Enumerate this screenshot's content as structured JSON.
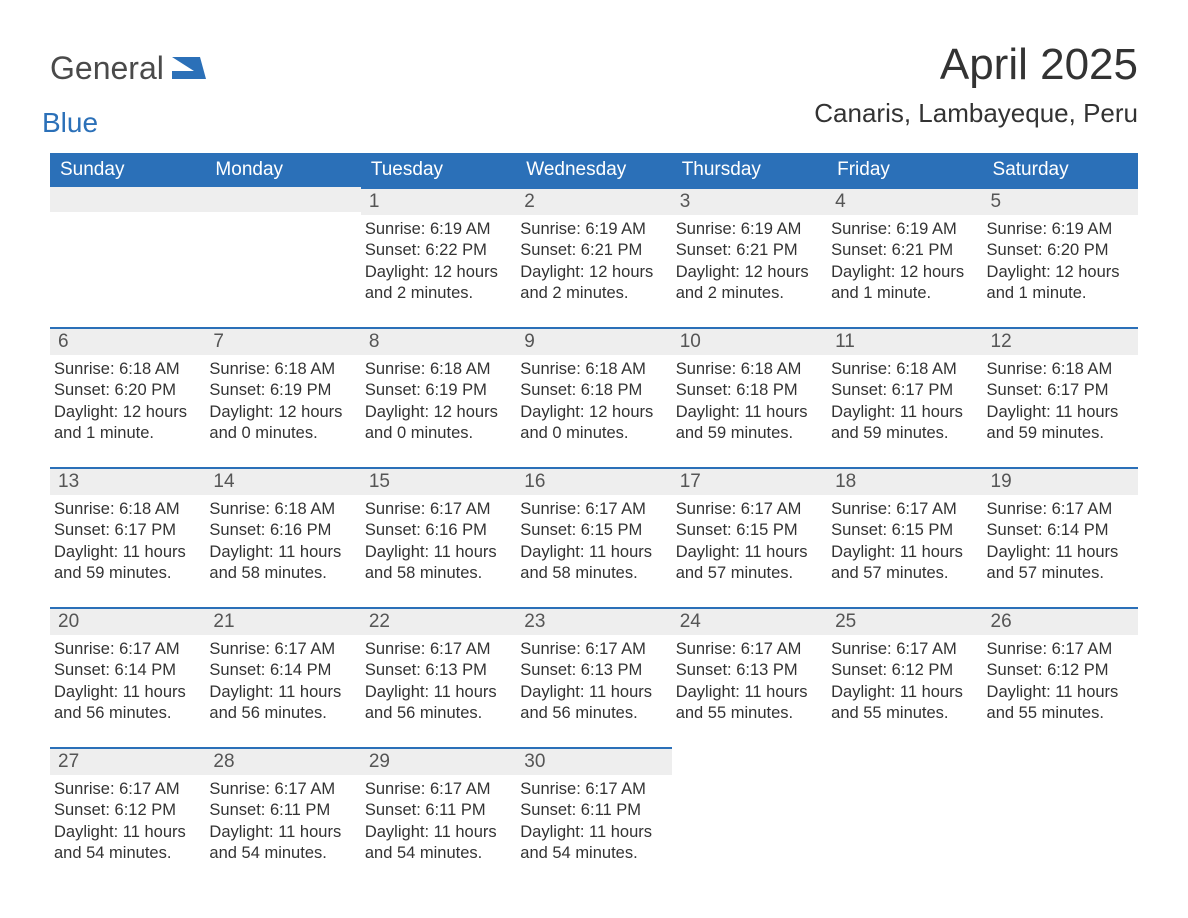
{
  "logo": {
    "word1": "General",
    "word2": "Blue",
    "accent_color": "#2b70b8",
    "text_color": "#4a4a4a"
  },
  "title": "April 2025",
  "location": "Canaris, Lambayeque, Peru",
  "header_bg": "#2b70b8",
  "header_fg": "#ffffff",
  "daynum_bg": "#eeeeee",
  "daynum_border": "#2b70b8",
  "page_bg": "#ffffff",
  "days_of_week": [
    "Sunday",
    "Monday",
    "Tuesday",
    "Wednesday",
    "Thursday",
    "Friday",
    "Saturday"
  ],
  "weeks": [
    [
      null,
      null,
      {
        "n": "1",
        "sr": "6:19 AM",
        "ss": "6:22 PM",
        "dl": "12 hours and 2 minutes."
      },
      {
        "n": "2",
        "sr": "6:19 AM",
        "ss": "6:21 PM",
        "dl": "12 hours and 2 minutes."
      },
      {
        "n": "3",
        "sr": "6:19 AM",
        "ss": "6:21 PM",
        "dl": "12 hours and 2 minutes."
      },
      {
        "n": "4",
        "sr": "6:19 AM",
        "ss": "6:21 PM",
        "dl": "12 hours and 1 minute."
      },
      {
        "n": "5",
        "sr": "6:19 AM",
        "ss": "6:20 PM",
        "dl": "12 hours and 1 minute."
      }
    ],
    [
      {
        "n": "6",
        "sr": "6:18 AM",
        "ss": "6:20 PM",
        "dl": "12 hours and 1 minute."
      },
      {
        "n": "7",
        "sr": "6:18 AM",
        "ss": "6:19 PM",
        "dl": "12 hours and 0 minutes."
      },
      {
        "n": "8",
        "sr": "6:18 AM",
        "ss": "6:19 PM",
        "dl": "12 hours and 0 minutes."
      },
      {
        "n": "9",
        "sr": "6:18 AM",
        "ss": "6:18 PM",
        "dl": "12 hours and 0 minutes."
      },
      {
        "n": "10",
        "sr": "6:18 AM",
        "ss": "6:18 PM",
        "dl": "11 hours and 59 minutes."
      },
      {
        "n": "11",
        "sr": "6:18 AM",
        "ss": "6:17 PM",
        "dl": "11 hours and 59 minutes."
      },
      {
        "n": "12",
        "sr": "6:18 AM",
        "ss": "6:17 PM",
        "dl": "11 hours and 59 minutes."
      }
    ],
    [
      {
        "n": "13",
        "sr": "6:18 AM",
        "ss": "6:17 PM",
        "dl": "11 hours and 59 minutes."
      },
      {
        "n": "14",
        "sr": "6:18 AM",
        "ss": "6:16 PM",
        "dl": "11 hours and 58 minutes."
      },
      {
        "n": "15",
        "sr": "6:17 AM",
        "ss": "6:16 PM",
        "dl": "11 hours and 58 minutes."
      },
      {
        "n": "16",
        "sr": "6:17 AM",
        "ss": "6:15 PM",
        "dl": "11 hours and 58 minutes."
      },
      {
        "n": "17",
        "sr": "6:17 AM",
        "ss": "6:15 PM",
        "dl": "11 hours and 57 minutes."
      },
      {
        "n": "18",
        "sr": "6:17 AM",
        "ss": "6:15 PM",
        "dl": "11 hours and 57 minutes."
      },
      {
        "n": "19",
        "sr": "6:17 AM",
        "ss": "6:14 PM",
        "dl": "11 hours and 57 minutes."
      }
    ],
    [
      {
        "n": "20",
        "sr": "6:17 AM",
        "ss": "6:14 PM",
        "dl": "11 hours and 56 minutes."
      },
      {
        "n": "21",
        "sr": "6:17 AM",
        "ss": "6:14 PM",
        "dl": "11 hours and 56 minutes."
      },
      {
        "n": "22",
        "sr": "6:17 AM",
        "ss": "6:13 PM",
        "dl": "11 hours and 56 minutes."
      },
      {
        "n": "23",
        "sr": "6:17 AM",
        "ss": "6:13 PM",
        "dl": "11 hours and 56 minutes."
      },
      {
        "n": "24",
        "sr": "6:17 AM",
        "ss": "6:13 PM",
        "dl": "11 hours and 55 minutes."
      },
      {
        "n": "25",
        "sr": "6:17 AM",
        "ss": "6:12 PM",
        "dl": "11 hours and 55 minutes."
      },
      {
        "n": "26",
        "sr": "6:17 AM",
        "ss": "6:12 PM",
        "dl": "11 hours and 55 minutes."
      }
    ],
    [
      {
        "n": "27",
        "sr": "6:17 AM",
        "ss": "6:12 PM",
        "dl": "11 hours and 54 minutes."
      },
      {
        "n": "28",
        "sr": "6:17 AM",
        "ss": "6:11 PM",
        "dl": "11 hours and 54 minutes."
      },
      {
        "n": "29",
        "sr": "6:17 AM",
        "ss": "6:11 PM",
        "dl": "11 hours and 54 minutes."
      },
      {
        "n": "30",
        "sr": "6:17 AM",
        "ss": "6:11 PM",
        "dl": "11 hours and 54 minutes."
      },
      null,
      null,
      null
    ]
  ],
  "labels": {
    "sunrise": "Sunrise:",
    "sunset": "Sunset:",
    "daylight": "Daylight:"
  }
}
